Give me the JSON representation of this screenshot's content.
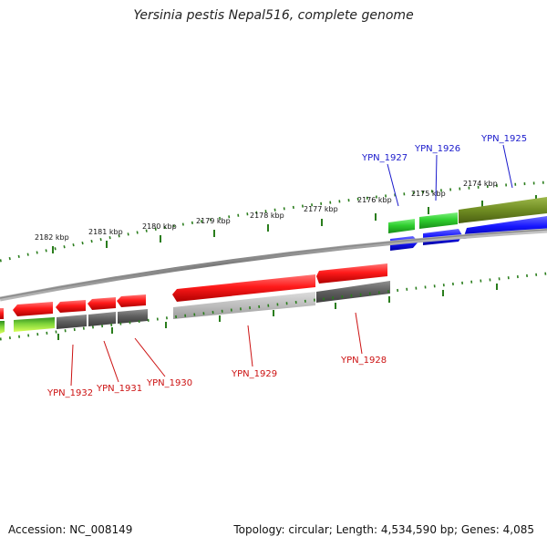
{
  "title": "Yersinia pestis Nepal516, complete genome",
  "footer": {
    "accession": "Accession: NC_008149",
    "summary": "Topology: circular; Length: 4,534,590 bp; Genes: 4,085"
  },
  "colors": {
    "outer_tick": "#2a7d1c",
    "backbone": "#8a8a8a",
    "forward_cds": "#ee1111",
    "reverse_cds": "#1a1aee",
    "label_forward": "#1a1acc",
    "label_reverse": "#cc1111"
  },
  "kbp_labels": [
    "2182 kbp",
    "2181 kbp",
    "2180 kbp",
    "2179 kbp",
    "2178 kbp",
    "2177 kbp",
    "2176 kbp",
    "2175 kbp",
    "2174 kbp"
  ],
  "genes_top": [
    "YPN_1927",
    "YPN_1926",
    "YPN_1925"
  ],
  "genes_bottom": [
    "YPN_1932",
    "YPN_1931",
    "YPN_1930",
    "YPN_1929",
    "YPN_1928"
  ]
}
